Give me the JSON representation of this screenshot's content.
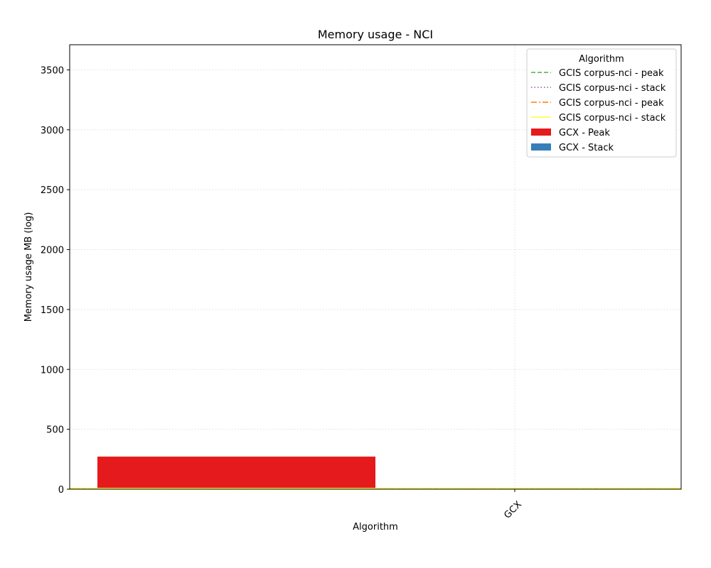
{
  "chart_data": {
    "type": "bar",
    "title": "Memory usage -  NCI",
    "xlabel": "Algorithm",
    "ylabel": "Memory usage MB (log)",
    "categories": [
      "GCX"
    ],
    "ylim": [
      0,
      3710
    ],
    "yticks": [
      0,
      500,
      1000,
      1500,
      2000,
      2500,
      3000,
      3500
    ],
    "grid": true,
    "legend_title": "Algorithm",
    "legend_position": "top-right",
    "bars": [
      {
        "name": "GCX - Peak",
        "category": "GCX",
        "value": 262,
        "base": 10,
        "color": "#e41a1c"
      },
      {
        "name": "GCX - Stack",
        "category": "GCX",
        "value": 0,
        "base": 0,
        "color": "#377eb8"
      }
    ],
    "lines": [
      {
        "name": "GCIS corpus-nci - peak",
        "value": 6,
        "color": "#4daf4a",
        "style": "dashed"
      },
      {
        "name": "GCIS corpus-nci - stack",
        "value": 6,
        "color": "#984ea3",
        "style": "dotted"
      },
      {
        "name": "GCIS corpus-nci - peak",
        "value": 6,
        "color": "#ff7f00",
        "style": "dashdot"
      },
      {
        "name": "GCIS corpus-nci - stack",
        "value": 6,
        "color": "#ffff33",
        "style": "solid"
      }
    ]
  }
}
